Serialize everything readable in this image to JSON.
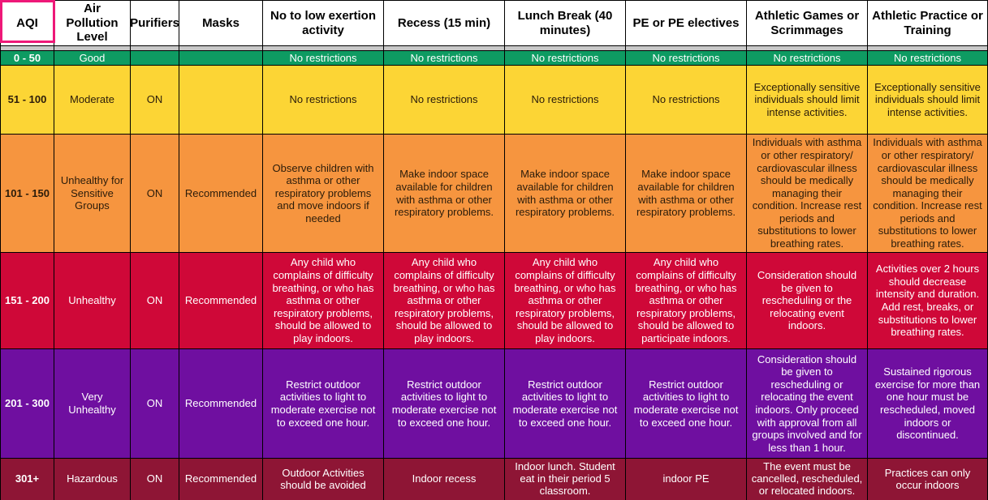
{
  "table": {
    "headers": [
      "AQI",
      "Air Pollution Level",
      "Purifiers",
      "Masks",
      "No to low exertion activity",
      "Recess (15 min)",
      "Lunch Break (40 minutes)",
      "PE or PE electives",
      "Athletic Games or Scrimmages",
      "Athletic Practice or Training"
    ],
    "rows": [
      {
        "level_key": "good",
        "cells": [
          "0 - 50",
          "Good",
          "",
          "",
          "No restrictions",
          "No restrictions",
          "No restrictions",
          "No restrictions",
          "No restrictions",
          "No restrictions"
        ]
      },
      {
        "level_key": "moderate",
        "cells": [
          "51 - 100",
          "Moderate",
          "ON",
          "",
          "No restrictions",
          "No restrictions",
          "No restrictions",
          "No restrictions",
          "Exceptionally sensitive individuals should limit intense activities.",
          "Exceptionally sensitive individuals should limit intense activities."
        ]
      },
      {
        "level_key": "unhealthy_for_sensitive_groups",
        "cells": [
          "101 - 150",
          "Unhealthy for Sensitive Groups",
          "ON",
          "Recommended",
          "Observe children with asthma or other respiratory problems and move indoors if needed",
          "Make indoor space available for children with asthma or other respiratory problems.",
          "Make indoor space available for children with asthma or other respiratory problems.",
          "Make indoor space available for children with asthma or other respiratory problems.",
          "Individuals with asthma or other respiratory/ cardiovascular illness should be medically managing their condition. Increase rest periods and substitutions to lower breathing rates.",
          "Individuals with asthma or other respiratory/ cardiovascular illness should be medically managing their condition. Increase rest periods and substitutions to lower breathing rates."
        ]
      },
      {
        "level_key": "unhealthy",
        "cells": [
          "151 - 200",
          "Unhealthy",
          "ON",
          "Recommended",
          "Any child who complains of difficulty breathing, or who has asthma or other respiratory problems, should be allowed to play indoors.",
          "Any child who complains of difficulty breathing, or who has asthma or other respiratory problems, should be allowed to play indoors.",
          "Any child who complains of difficulty breathing, or who has asthma or other respiratory problems, should be allowed to play indoors.",
          "Any child who complains of difficulty breathing, or who has asthma or other respiratory problems, should be allowed to participate indoors.",
          "Consideration should be given to rescheduling or the relocating event indoors.",
          "Activities over 2 hours should decrease intensity and duration. Add rest, breaks, or substitutions to lower breathing rates."
        ]
      },
      {
        "level_key": "very_unhealthy",
        "cells": [
          "201 - 300",
          "Very Unhealthy",
          "ON",
          "Recommended",
          "Restrict outdoor activities to light to moderate exercise not to exceed one hour.",
          "Restrict outdoor activities to light to moderate exercise not to exceed one hour.",
          "Restrict outdoor activities to light to moderate exercise not to exceed one hour.",
          "Restrict outdoor activities to light to moderate exercise not to exceed one hour.",
          "Consideration should be given to rescheduling or relocating the event indoors. Only proceed with approval from all groups involved and for less than 1 hour.",
          "Sustained rigorous exercise for more than one hour must be rescheduled, moved indoors or discontinued."
        ]
      },
      {
        "level_key": "hazardous",
        "cells": [
          "301+",
          "Hazardous",
          "ON",
          "Recommended",
          "Outdoor Activities should be avoided",
          "Indoor recess",
          "Indoor lunch. Student eat in their period 5 classroom.",
          "indoor PE",
          "The event must be cancelled, rescheduled, or relocated indoors.",
          "Practices can only occur indoors"
        ]
      }
    ]
  },
  "colors": {
    "header_bg": "#ffffff",
    "header_text": "#000000",
    "grid_line": "#000000",
    "separator_gray": "#c8c8c8",
    "selection_highlight": "#ee1878",
    "row_good_bg": "#0e9b62",
    "row_good_text": "#ffffff",
    "row_moderate_bg": "#fcd535",
    "row_moderate_text": "#2b1c0a",
    "row_usg_bg": "#f6953f",
    "row_usg_text": "#2b1c0a",
    "row_unhealthy_bg": "#cf0838",
    "row_unhealthy_text": "#ffffff",
    "row_very_unhealthy_bg": "#6f0fa0",
    "row_very_unhealthy_text": "#ffffff",
    "row_hazardous_bg": "#8e1535",
    "row_hazardous_text": "#ffffff"
  }
}
